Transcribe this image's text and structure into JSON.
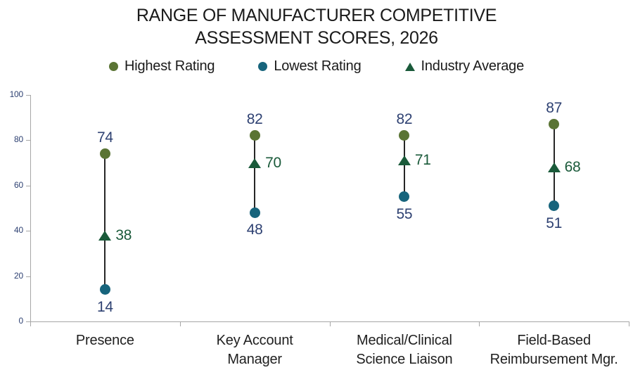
{
  "title": {
    "line1": "RANGE OF MANUFACTURER COMPETITIVE",
    "line2": "ASSESSMENT SCORES, 2026"
  },
  "legend": [
    {
      "label": "Highest Rating",
      "marker": "circle",
      "color": "#5a7434"
    },
    {
      "label": "Lowest Rating",
      "marker": "circle",
      "color": "#17647c"
    },
    {
      "label": "Industry Average",
      "marker": "triangle",
      "color": "#1a5a3a"
    }
  ],
  "chart_data": {
    "type": "dot-range",
    "title": "RANGE OF MANUFACTURER COMPETITIVE ASSESSMENT SCORES, 2026",
    "categories": [
      "Presence",
      "Key Account Manager",
      "Medical/Clinical Science Liaison",
      "Field-Based Reimbursement Mgr."
    ],
    "category_lines": [
      [
        "Presence"
      ],
      [
        "Key Account",
        "Manager"
      ],
      [
        "Medical/Clinical",
        "Science Liaison"
      ],
      [
        "Field-Based",
        "Reimbursement Mgr."
      ]
    ],
    "series": [
      {
        "name": "Highest Rating",
        "marker": "circle",
        "color": "#5a7434",
        "values": [
          74,
          82,
          82,
          87
        ]
      },
      {
        "name": "Lowest Rating",
        "marker": "circle",
        "color": "#17647c",
        "values": [
          14,
          48,
          55,
          51
        ]
      },
      {
        "name": "Industry Average",
        "marker": "triangle",
        "color": "#1a5a3a",
        "values": [
          38,
          70,
          71,
          68
        ]
      }
    ],
    "y_axis": {
      "min": 0,
      "max": 100,
      "ticks": [
        0,
        20,
        40,
        60,
        80,
        100
      ]
    },
    "xlabel": "",
    "ylabel": "",
    "grid": false,
    "legend_position": "top",
    "colors": {
      "value_label": "#2e4172",
      "average_label": "#1a5a3a",
      "axis": "#a6a6a6",
      "axis_tick_label": "#2e4172",
      "stem": "#262626",
      "title_text": "#1a1a1a",
      "legend_text": "#1a1a1a"
    }
  }
}
